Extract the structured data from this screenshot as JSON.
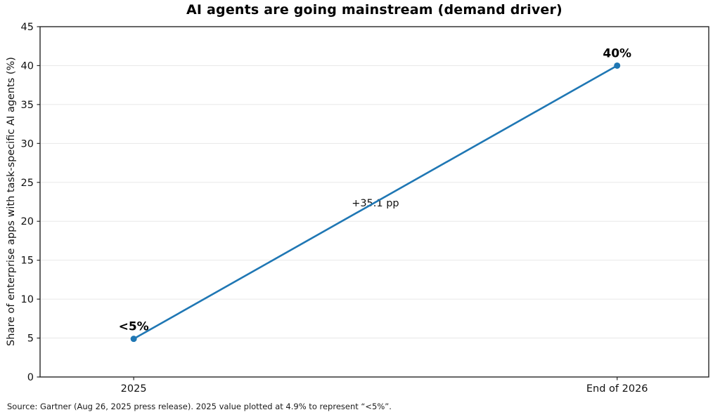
{
  "figure": {
    "source_note": "Source: Gartner (Aug 26, 2025 press release). 2025 value plotted at 4.9% to represent “<5%”."
  },
  "chart_data": {
    "type": "line",
    "title": "AI agents are going mainstream (demand driver)",
    "xlabel": "",
    "ylabel": "Share of enterprise apps with task-specific AI agents (%)",
    "categories": [
      "2025",
      "End of 2026"
    ],
    "values": [
      4.9,
      40
    ],
    "point_labels": [
      "<5%",
      "40%"
    ],
    "midpoint_annotation": "+35.1 pp",
    "ylim": [
      0,
      45
    ],
    "yticks": [
      0,
      5,
      10,
      15,
      20,
      25,
      30,
      35,
      40,
      45
    ],
    "grid": "horizontal",
    "legend": "none",
    "line_color": "#1f77b4",
    "marker_color": "#1f77b4"
  }
}
